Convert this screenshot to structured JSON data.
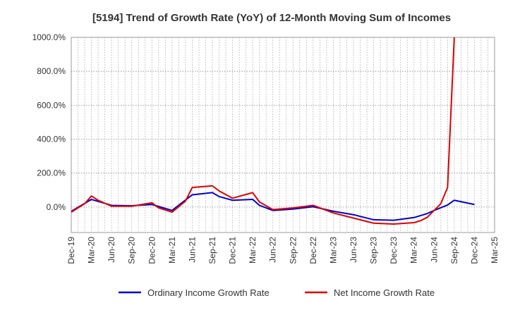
{
  "chart_data": {
    "type": "line",
    "title": "[5194]  Trend of Growth Rate (YoY) of 12-Month Moving Sum of Incomes",
    "xlabel": "",
    "ylabel": "",
    "ylim": [
      -150,
      1000
    ],
    "y_ticks": [
      0,
      200,
      400,
      600,
      800,
      1000
    ],
    "y_tick_labels": [
      "0.0%",
      "200.0%",
      "400.0%",
      "600.0%",
      "800.0%",
      "1000.0%"
    ],
    "x_tick_labels": [
      "Dec-19",
      "Mar-20",
      "Jun-20",
      "Sep-20",
      "Dec-20",
      "Mar-21",
      "Jun-21",
      "Sep-21",
      "Dec-21",
      "Mar-22",
      "Jun-22",
      "Sep-22",
      "Dec-22",
      "Mar-23",
      "Jun-23",
      "Sep-23",
      "Dec-23",
      "Mar-24",
      "Jun-24",
      "Sep-24",
      "Dec-24",
      "Mar-25"
    ],
    "months": [
      "Dec-19",
      "Jan-20",
      "Feb-20",
      "Mar-20",
      "Apr-20",
      "May-20",
      "Jun-20",
      "Jul-20",
      "Aug-20",
      "Sep-20",
      "Oct-20",
      "Nov-20",
      "Dec-20",
      "Jan-21",
      "Feb-21",
      "Mar-21",
      "Apr-21",
      "May-21",
      "Jun-21",
      "Jul-21",
      "Aug-21",
      "Sep-21",
      "Oct-21",
      "Nov-21",
      "Dec-21",
      "Jan-22",
      "Feb-22",
      "Mar-22",
      "Apr-22",
      "May-22",
      "Jun-22",
      "Jul-22",
      "Aug-22",
      "Sep-22",
      "Oct-22",
      "Nov-22",
      "Dec-22",
      "Jan-23",
      "Feb-23",
      "Mar-23",
      "Apr-23",
      "May-23",
      "Jun-23",
      "Jul-23",
      "Aug-23",
      "Sep-23",
      "Oct-23",
      "Nov-23",
      "Dec-23",
      "Jan-24",
      "Feb-24",
      "Mar-24",
      "Apr-24",
      "May-24",
      "Jun-24",
      "Jul-24",
      "Aug-24",
      "Sep-24",
      "Oct-24",
      "Nov-24",
      "Dec-24",
      "Jan-25",
      "Feb-25",
      "Mar-25"
    ],
    "grid": true,
    "legend_position": "bottom",
    "series": [
      {
        "name": "Ordinary Income Growth Rate",
        "color": "#0000cc",
        "points": [
          [
            "Dec-19",
            -25
          ],
          [
            "Mar-20",
            45
          ],
          [
            "Jun-20",
            10
          ],
          [
            "Sep-20",
            8
          ],
          [
            "Dec-20",
            15
          ],
          [
            "Mar-21",
            -20
          ],
          [
            "Jun-21",
            72
          ],
          [
            "Sep-21",
            85
          ],
          [
            "Oct-21",
            62
          ],
          [
            "Dec-21",
            40
          ],
          [
            "Mar-22",
            45
          ],
          [
            "Apr-22",
            10
          ],
          [
            "Jun-22",
            -20
          ],
          [
            "Sep-22",
            -12
          ],
          [
            "Dec-22",
            2
          ],
          [
            "Mar-23",
            -25
          ],
          [
            "Jun-23",
            -45
          ],
          [
            "Sep-23",
            -75
          ],
          [
            "Dec-23",
            -78
          ],
          [
            "Mar-24",
            -62
          ],
          [
            "May-24",
            -38
          ],
          [
            "Jun-24",
            -20
          ],
          [
            "Aug-24",
            12
          ],
          [
            "Sep-24",
            40
          ],
          [
            "Dec-24",
            15
          ]
        ]
      },
      {
        "name": "Net Income Growth Rate",
        "color": "#dd0000",
        "points": [
          [
            "Dec-19",
            -30
          ],
          [
            "Feb-20",
            20
          ],
          [
            "Mar-20",
            65
          ],
          [
            "Apr-20",
            40
          ],
          [
            "Jun-20",
            5
          ],
          [
            "Sep-20",
            5
          ],
          [
            "Dec-20",
            25
          ],
          [
            "Jan-21",
            -5
          ],
          [
            "Mar-21",
            -30
          ],
          [
            "May-21",
            35
          ],
          [
            "Jun-21",
            115
          ],
          [
            "Sep-21",
            125
          ],
          [
            "Oct-21",
            95
          ],
          [
            "Dec-21",
            52
          ],
          [
            "Mar-22",
            85
          ],
          [
            "Apr-22",
            30
          ],
          [
            "Jun-22",
            -15
          ],
          [
            "Sep-22",
            -5
          ],
          [
            "Dec-22",
            10
          ],
          [
            "Mar-23",
            -35
          ],
          [
            "Jun-23",
            -65
          ],
          [
            "Sep-23",
            -95
          ],
          [
            "Dec-23",
            -100
          ],
          [
            "Mar-24",
            -92
          ],
          [
            "Apr-24",
            -80
          ],
          [
            "May-24",
            -60
          ],
          [
            "Jun-24",
            -20
          ],
          [
            "Jul-24",
            20
          ],
          [
            "Aug-24",
            115
          ],
          [
            "Sep-24",
            1000
          ]
        ]
      }
    ]
  }
}
